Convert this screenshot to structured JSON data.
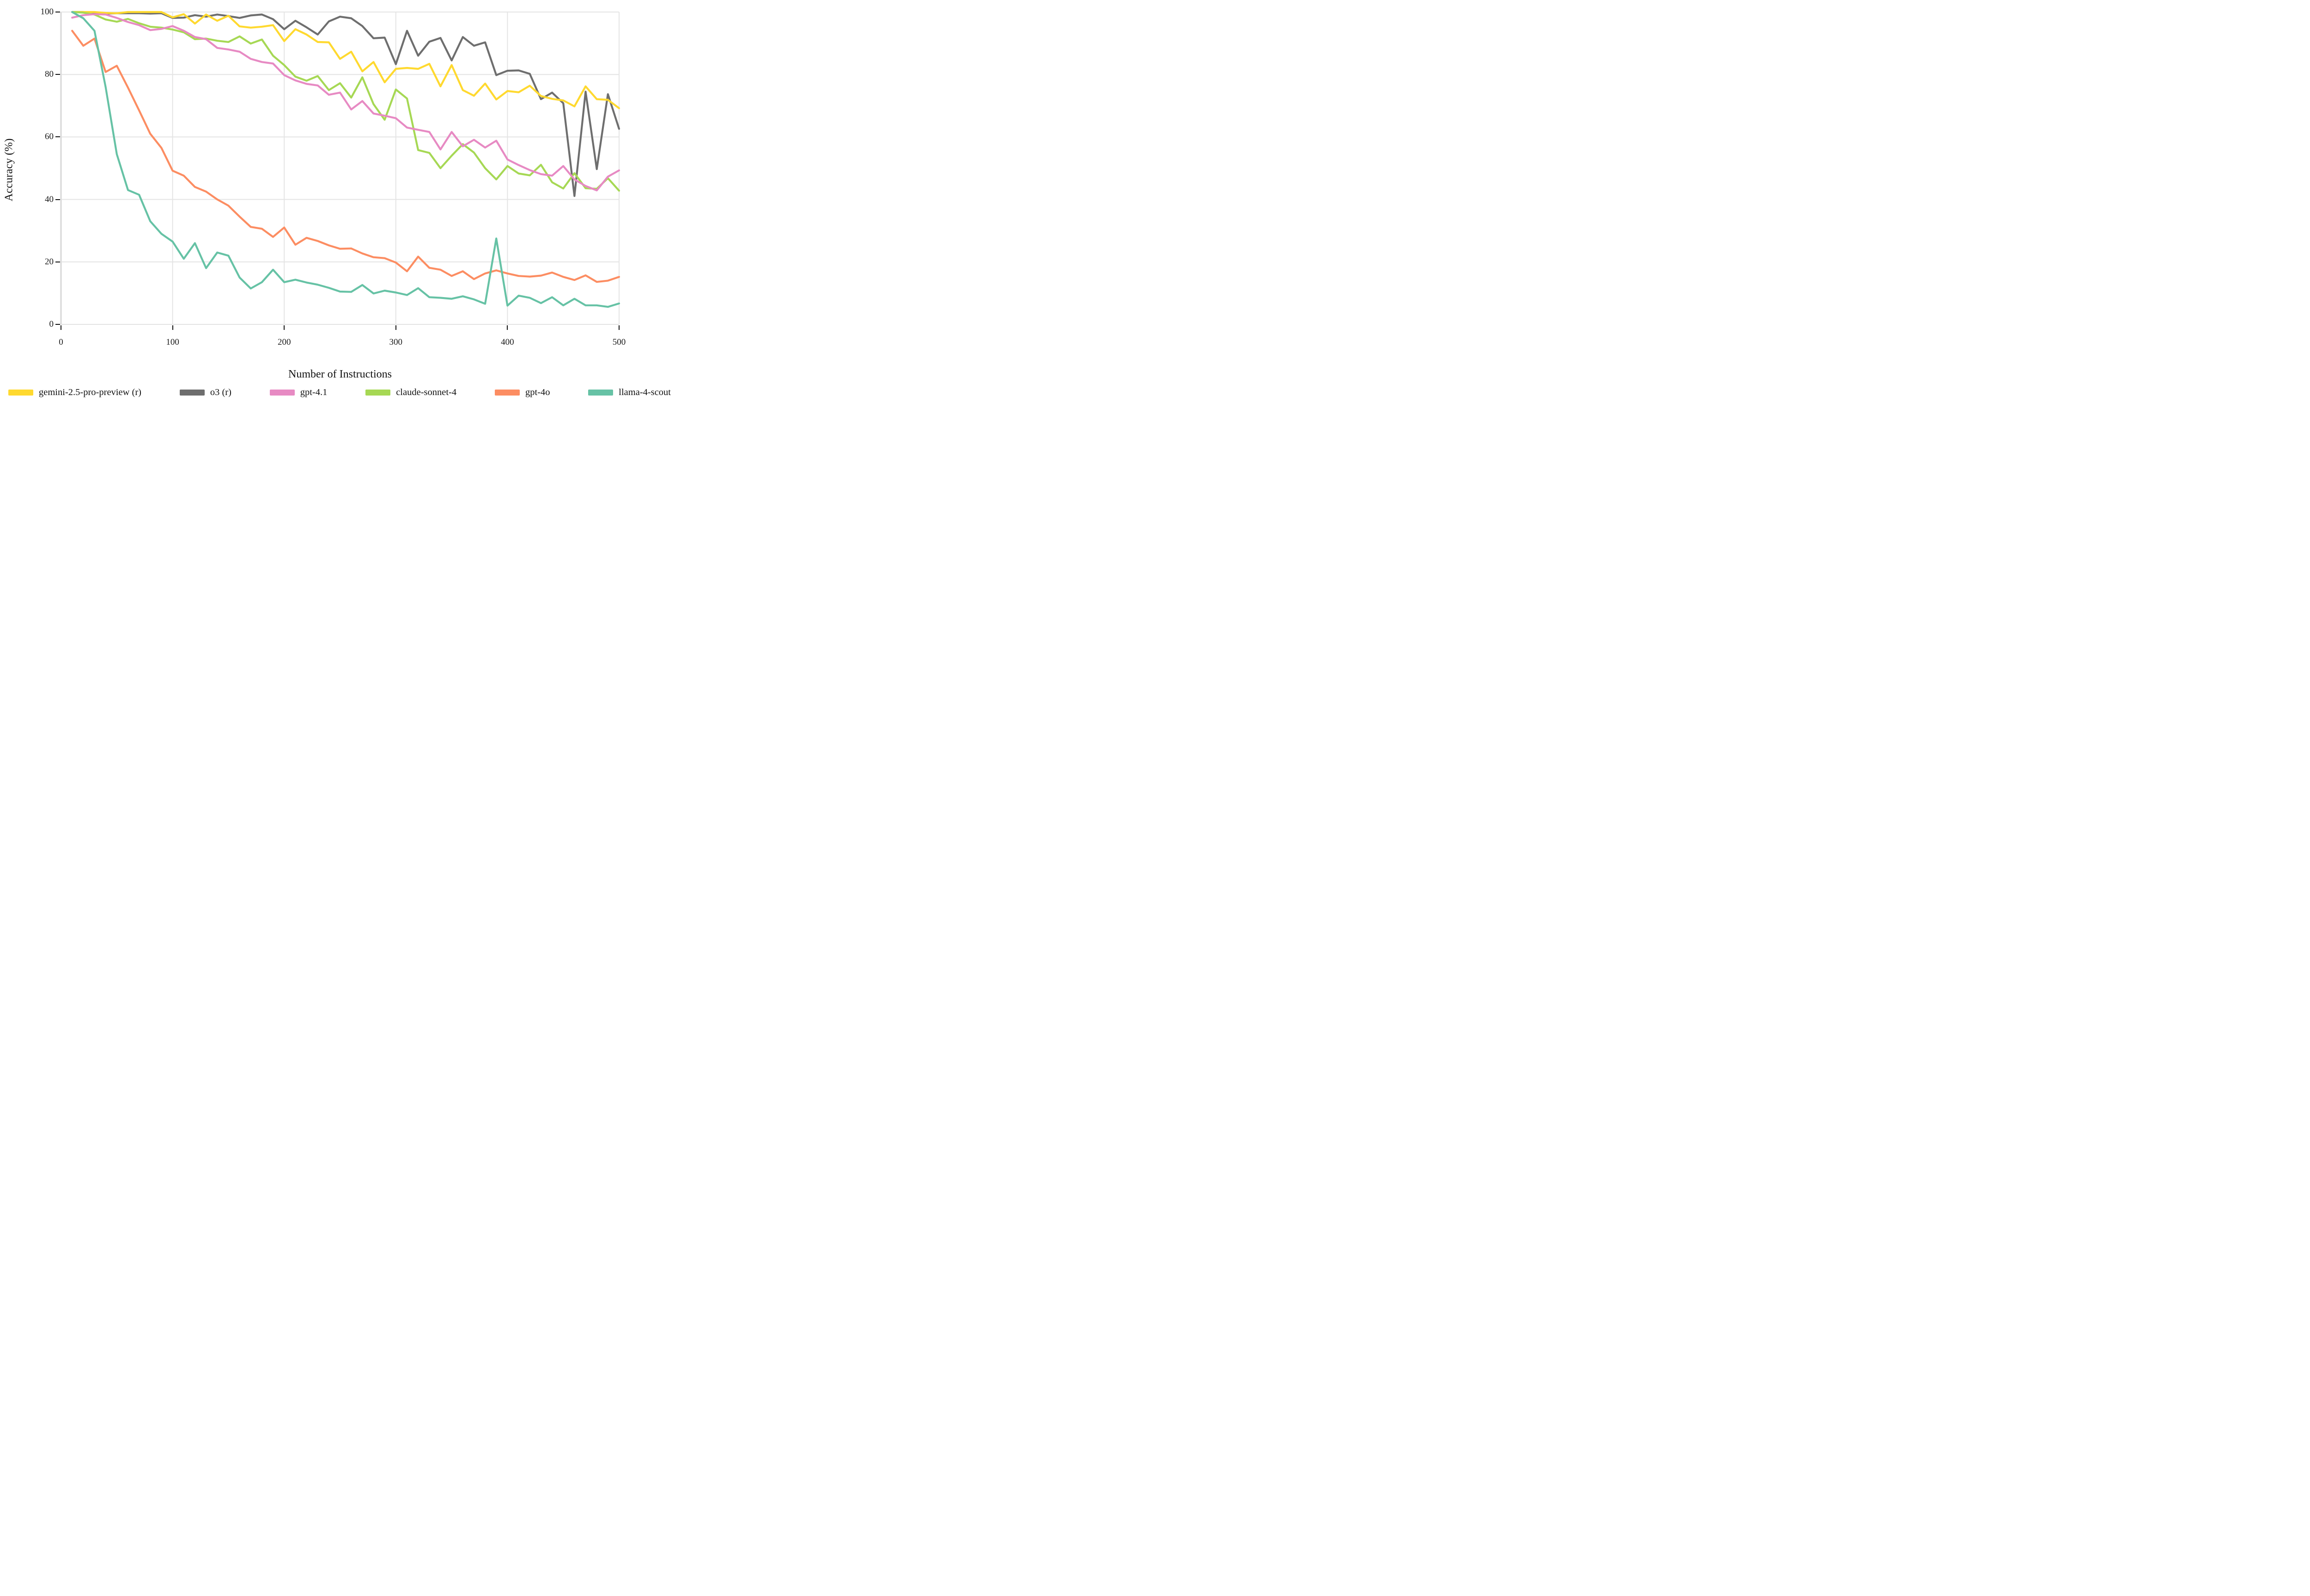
{
  "chart_data": {
    "type": "line",
    "title": "",
    "xlabel": "Number of Instructions",
    "ylabel": "Accuracy (%)",
    "xlim": [
      0,
      500
    ],
    "ylim": [
      0,
      100
    ],
    "xticks": [
      0,
      100,
      200,
      300,
      400,
      500
    ],
    "yticks": [
      0,
      20,
      40,
      60,
      80,
      100
    ],
    "grid": "on",
    "legend_position": "bottom",
    "colors": {
      "grid_line": "#e4e4e4",
      "axis_line": "#dcdcdc",
      "tick_mark": "#111111",
      "text": "#111111",
      "background": "#ffffff"
    },
    "x": [
      10,
      20,
      30,
      40,
      50,
      60,
      70,
      80,
      90,
      100,
      110,
      120,
      130,
      140,
      150,
      160,
      170,
      180,
      190,
      200,
      210,
      220,
      230,
      240,
      250,
      260,
      270,
      280,
      290,
      300,
      310,
      320,
      330,
      340,
      350,
      360,
      370,
      380,
      390,
      400,
      410,
      420,
      430,
      440,
      450,
      460,
      470,
      480,
      490,
      500
    ],
    "series": [
      {
        "name": "gemini-2.5-pro-preview (r)",
        "color": "#FFD92F",
        "values": [
          100,
          100,
          100,
          99.7,
          99.6,
          100,
          100,
          100,
          100,
          98.3,
          99.3,
          96.3,
          99.2,
          97.2,
          98.8,
          95.4,
          95,
          95.3,
          95.8,
          90.7,
          94.5,
          92.8,
          90.4,
          90.3,
          85,
          87.3,
          81,
          84,
          77.5,
          81.8,
          82.1,
          81.8,
          83.4,
          76.2,
          83,
          75,
          73.2,
          77.1,
          72,
          74.7,
          74.3,
          76.4,
          73.1,
          72.2,
          71.7,
          69.8,
          76.2,
          72.1,
          71.9,
          69.2
        ]
      },
      {
        "name": "o3 (r)",
        "color": "#6E6E6E",
        "values": [
          100,
          100,
          99.6,
          99.5,
          99.6,
          99.6,
          99.6,
          99.5,
          99.6,
          98.1,
          98.2,
          99,
          98.5,
          99.2,
          98.7,
          98.1,
          98.9,
          99.2,
          97.7,
          94.5,
          97.2,
          95.1,
          92.8,
          97,
          98.5,
          98,
          95.5,
          91.6,
          91.8,
          83.3,
          94,
          86,
          90.5,
          91.7,
          84.5,
          92,
          89.2,
          90.3,
          79.8,
          81.2,
          81.3,
          80.2,
          72.1,
          74.2,
          70.8,
          41.1,
          74.5,
          49.7,
          73.7,
          62.6
        ]
      },
      {
        "name": "gpt-4.1",
        "color": "#E78AC3",
        "values": [
          98.2,
          99,
          99.3,
          99.2,
          98.1,
          96.8,
          95.8,
          94.2,
          94.6,
          95.5,
          94,
          92,
          91.3,
          88.5,
          88,
          87.3,
          85,
          84,
          83.5,
          79.8,
          78.1,
          77,
          76.5,
          73.5,
          74.2,
          68.8,
          71.5,
          67.5,
          66.8,
          66,
          63,
          62.3,
          61.6,
          56,
          61.6,
          57,
          59.1,
          56.6,
          58.8,
          52.8,
          51,
          49.4,
          48.1,
          47.6,
          50.7,
          46.4,
          44.3,
          42.9,
          47.3,
          49.3
        ]
      },
      {
        "name": "claude-sonnet-4",
        "color": "#A6D854",
        "values": [
          100,
          99.8,
          99.2,
          97.6,
          96.9,
          97.8,
          96.4,
          95.3,
          95,
          94.4,
          93.5,
          91.3,
          91.5,
          90.8,
          90.4,
          92.2,
          89.9,
          91.2,
          86,
          83,
          79.3,
          78,
          79.5,
          75,
          77.2,
          72.6,
          79.1,
          70.5,
          65.5,
          75.2,
          72.3,
          55.8,
          54.9,
          50,
          54,
          57.7,
          55,
          50,
          46.4,
          50.7,
          48.3,
          47.7,
          51.1,
          45.5,
          43.5,
          48.4,
          43.6,
          43.4,
          46.8,
          42.8
        ]
      },
      {
        "name": "gpt-4o",
        "color": "#FC8D62",
        "values": [
          94,
          89.2,
          91.5,
          80.8,
          82.8,
          75.8,
          68.5,
          61,
          56.5,
          49.2,
          47.6,
          44,
          42.5,
          40,
          38,
          34.5,
          31.2,
          30.6,
          28,
          31,
          25.5,
          27.7,
          26.7,
          25.3,
          24.2,
          24.3,
          22.7,
          21.5,
          21.2,
          19.8,
          17,
          21.7,
          18.1,
          17.5,
          15.5,
          17,
          14.5,
          16.3,
          17.3,
          16.3,
          15.5,
          15.3,
          15.6,
          16.6,
          15.2,
          14.2,
          15.7,
          13.6,
          14,
          15.2
        ]
      },
      {
        "name": "llama-4-scout",
        "color": "#66C2A5",
        "values": [
          100,
          98,
          94,
          76,
          54.5,
          43,
          41.5,
          33,
          29,
          26.5,
          21,
          26,
          18,
          23,
          22,
          15,
          11.5,
          13.5,
          17.5,
          13.5,
          14.3,
          13.4,
          12.7,
          11.7,
          10.5,
          10.4,
          12.6,
          9.9,
          10.8,
          10.2,
          9.4,
          11.6,
          8.7,
          8.5,
          8.2,
          9,
          8,
          6.6,
          27.5,
          6,
          9.2,
          8.5,
          6.8,
          8.7,
          6.1,
          8.2,
          6.1,
          6.1,
          5.6,
          6.7
        ]
      }
    ]
  }
}
